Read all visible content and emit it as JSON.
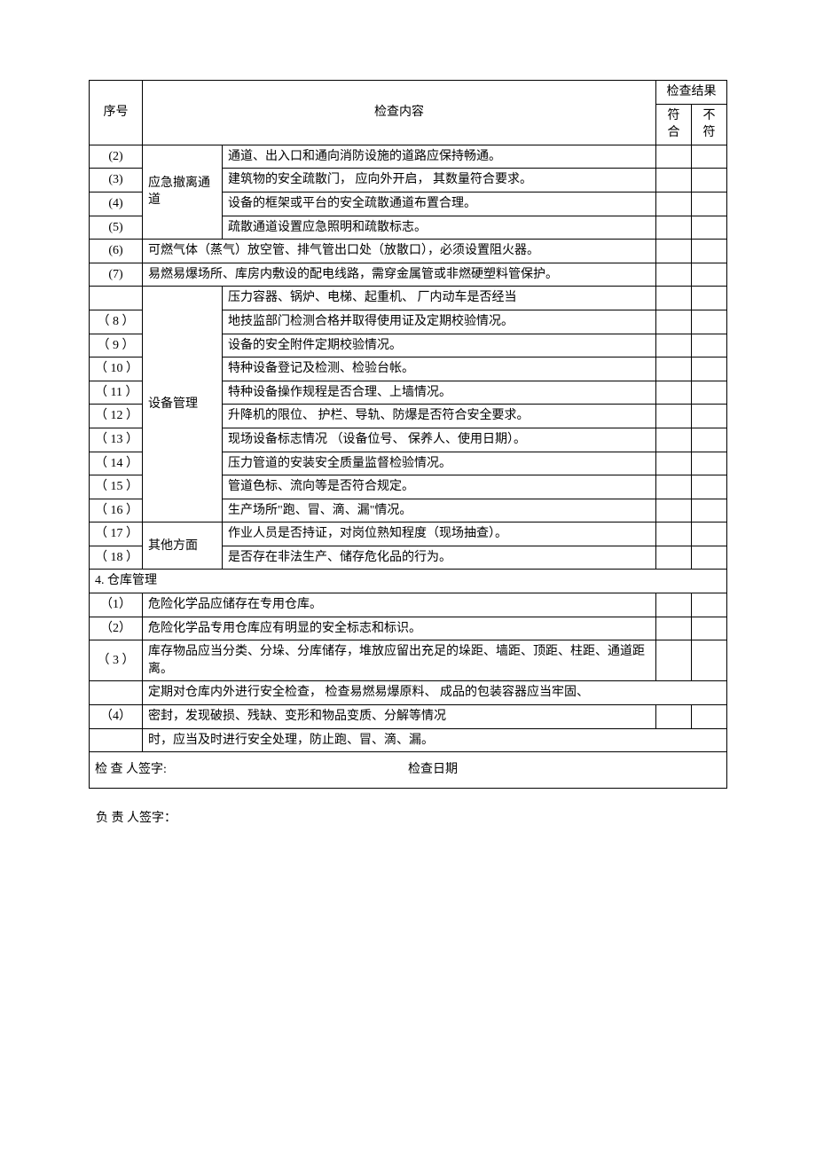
{
  "header": {
    "seq": "序号",
    "content": "检查内容",
    "result": "检查结果",
    "pass": "符合",
    "fail": "不符"
  },
  "category1": "应急撤离通道",
  "category2": "设备管理",
  "category3": "其他方面",
  "section4_title": "4. 仓库管理",
  "rows": {
    "r2": {
      "seq": "(2)",
      "text": "通道、出入口和通向消防设施的道路应保持畅通。"
    },
    "r3": {
      "seq": "(3)",
      "text": "建筑物的安全疏散门，  应向外开启，  其数量符合要求。"
    },
    "r4": {
      "seq": "(4)",
      "text": "设备的框架或平台的安全疏散通道布置合理。"
    },
    "r5": {
      "seq": "(5)",
      "text": "疏散通道设置应急照明和疏散标志。"
    },
    "r6": {
      "seq": "(6)",
      "text": "可燃气体（蒸气）放空管、排气管出口处（放散口），必须设置阻火器。"
    },
    "r7": {
      "seq": "(7)",
      "text": "易燃易爆场所、库房内敷设的配电线路，需穿金属管或非燃硬塑料管保护。"
    },
    "r8a": {
      "seq": "",
      "text": "压力容器、锅炉、电梯、起重机、  厂内动车是否经当"
    },
    "r8b": {
      "seq": "（ 8 ）",
      "text": "地技监部门检测合格并取得使用证及定期校验情况。"
    },
    "r9": {
      "seq": "（ 9 ）",
      "text": "设备的安全附件定期校验情况。"
    },
    "r10": {
      "seq": "（ 10 ）",
      "text": "特种设备登记及检测、检验台帐。"
    },
    "r11": {
      "seq": "（ 11 ）",
      "text": "特种设备操作规程是否合理、上墙情况。"
    },
    "r12": {
      "seq": "（ 12 ）",
      "text": "升降机的限位、  护栏、导轨、防爆是否符合安全要求。"
    },
    "r13": {
      "seq": "（ 13 ）",
      "text": "现场设备标志情况  （设备位号、  保养人、使用日期）。"
    },
    "r14": {
      "seq": "（ 14 ）",
      "text": "压力管道的安装安全质量监督检验情况。"
    },
    "r15": {
      "seq": "（ 15 ）",
      "text": "管道色标、流向等是否符合规定。"
    },
    "r16": {
      "seq": "（ 16 ）",
      "text": "生产场所\"跑、冒、滴、漏\"情况。"
    },
    "r17": {
      "seq": "（ 17 ）",
      "text": "作业人员是否持证，对岗位熟知程度（现场抽查）。"
    },
    "r18": {
      "seq": "（ 18 ）",
      "text": "是否存在非法生产、储存危化品的行为。"
    },
    "w1": {
      "seq": "（1）",
      "text": "危险化学品应储存在专用仓库。"
    },
    "w2": {
      "seq": "（2）",
      "text": "危险化学品专用仓库应有明显的安全标志和标识。"
    },
    "w3": {
      "seq": "（ 3 ）",
      "text": "库存物品应当分类、分垛、分库储存，堆放应留出充足的垛距、墙距、顶距、柱距、通道距离。"
    },
    "w4a": {
      "text": "定期对仓库内外进行安全检查，    检查易燃易爆原料、  成品的包装容器应当牢固、"
    },
    "w4b": {
      "seq": "（4）",
      "text": "密封，发现破损、残缺、变形和物品变质、分解等情况"
    },
    "w4c": {
      "text": "时，应当及时进行安全处理，防止跑、冒、滴、漏。"
    }
  },
  "footer": {
    "checker_label": "检 查 人签字:",
    "date_label": "检查日期",
    "responsible_label": "负 责 人签字："
  }
}
